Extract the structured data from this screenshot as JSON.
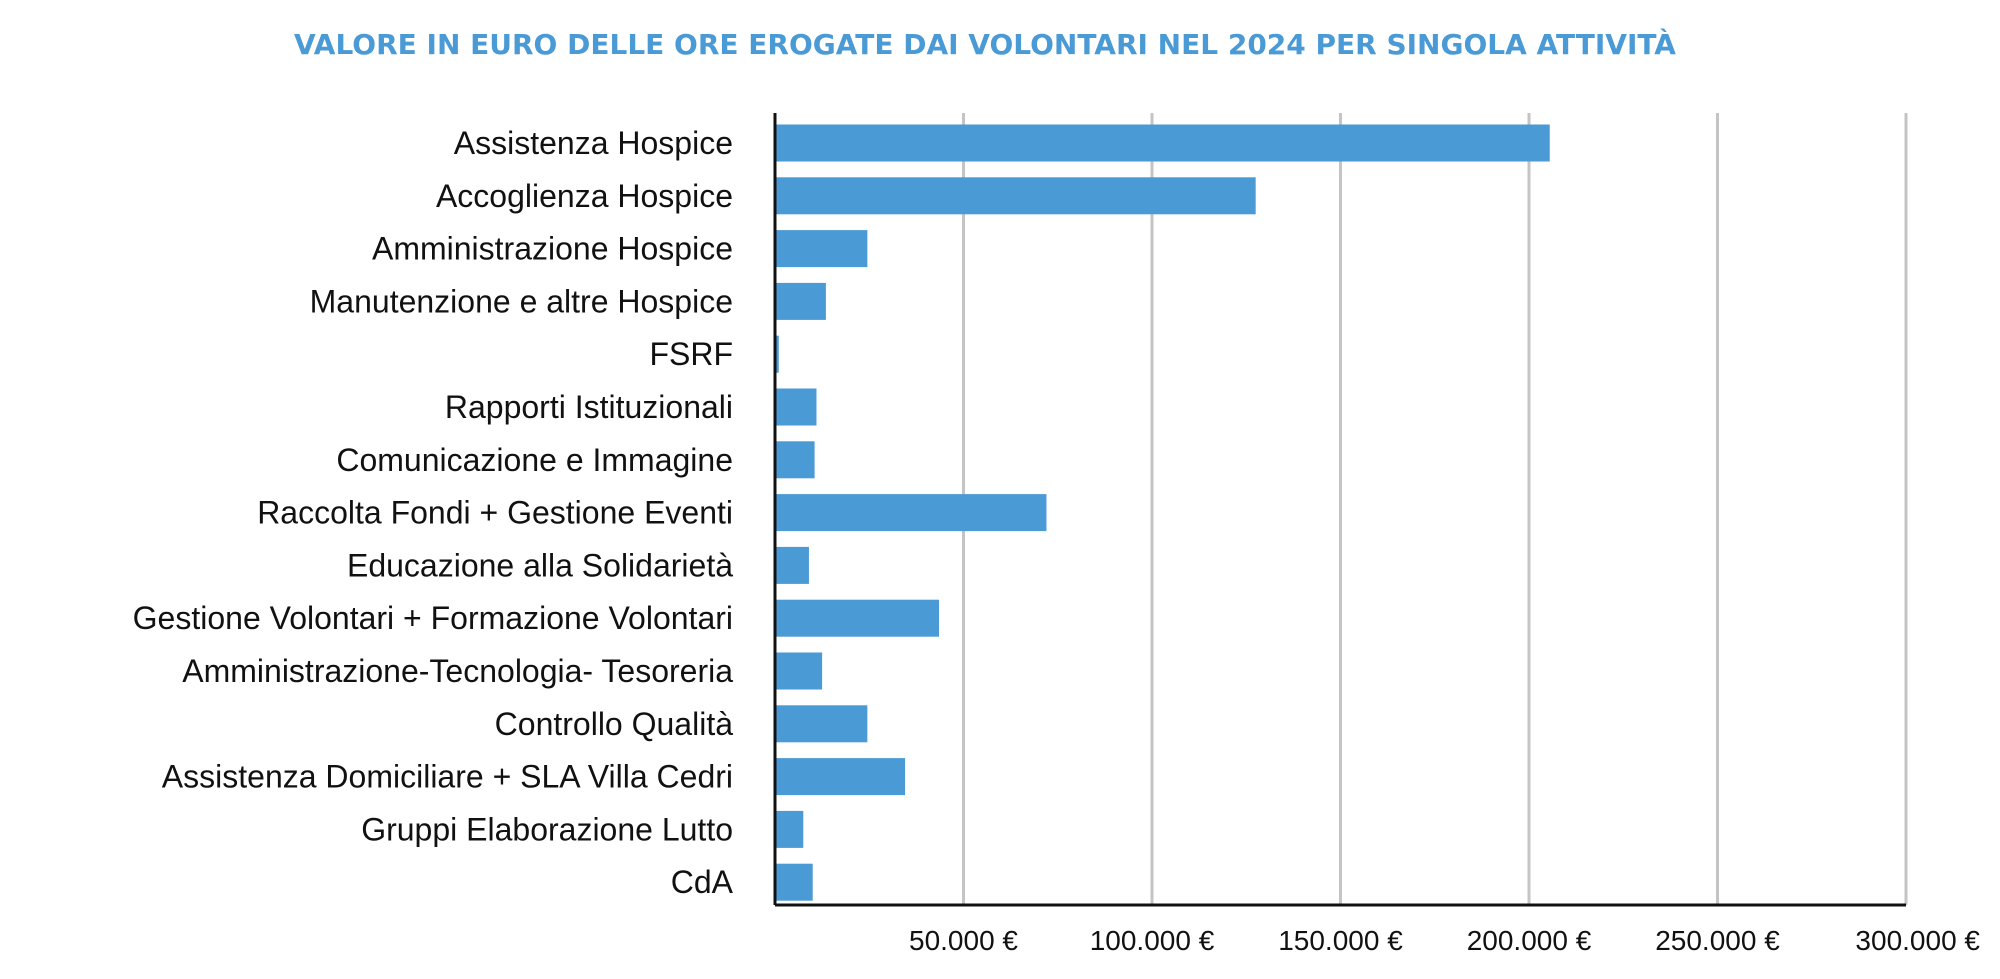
{
  "chart_data": {
    "type": "bar",
    "orientation": "horizontal",
    "title": "VALORE IN EURO DELLE ORE EROGATE DAI VOLONTARI NEL 2024 PER SINGOLA ATTIVITÀ",
    "categories": [
      "Assistenza Hospice",
      "Accoglienza Hospice",
      "Amministrazione Hospice",
      "Manutenzione e altre Hospice",
      "FSRF",
      "Rapporti Istituzionali",
      "Comunicazione e Immagine",
      "Raccolta Fondi + Gestione Eventi",
      "Educazione alla Solidarietà",
      "Gestione Volontari + Formazione Volontari",
      "Amministrazione-Tecnologia- Tesoreria",
      "Controllo Qualità",
      "Assistenza Domiciliare + SLA Villa Cedri",
      "Gruppi Elaborazione Lutto",
      "CdA"
    ],
    "values": [
      205500,
      127500,
      24500,
      13500,
      1000,
      11000,
      10500,
      72000,
      9000,
      43500,
      12500,
      24500,
      34500,
      7500,
      10000
    ],
    "xlim": [
      0,
      300000
    ],
    "ticks": [
      {
        "value": 50000,
        "label": "50.000 €"
      },
      {
        "value": 100000,
        "label": "100.000 €"
      },
      {
        "value": 150000,
        "label": "150.000 €"
      },
      {
        "value": 200000,
        "label": "200.000 €"
      },
      {
        "value": 250000,
        "label": "250.000 €"
      },
      {
        "value": 300000,
        "label": "300.000 €"
      }
    ],
    "grid": true,
    "legend": "none",
    "bar_color": "#4a9ad6",
    "title_color": "#4a9ad6"
  }
}
